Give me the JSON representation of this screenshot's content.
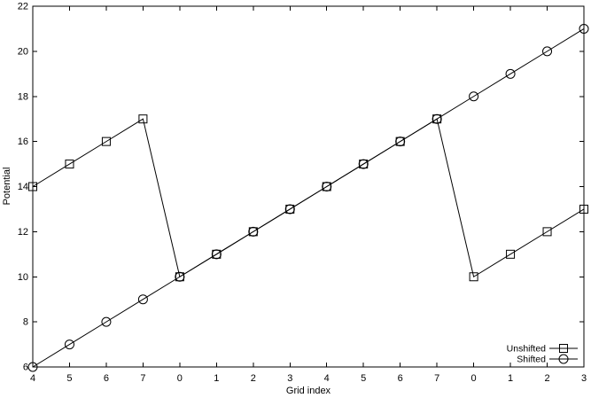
{
  "chart_data": {
    "type": "line",
    "title": "",
    "xlabel": "Grid index",
    "ylabel": "Potential",
    "x_tick_labels": [
      "4",
      "5",
      "6",
      "7",
      "0",
      "1",
      "2",
      "3",
      "4",
      "5",
      "6",
      "7",
      "0",
      "1",
      "2",
      "3"
    ],
    "ylim": [
      6,
      22
    ],
    "y_ticks": [
      6,
      8,
      10,
      12,
      14,
      16,
      18,
      20,
      22
    ],
    "grid": false,
    "legend_position": "bottom-right",
    "series": [
      {
        "name": "Unshifted",
        "marker": "square",
        "values": [
          14,
          15,
          16,
          17,
          10,
          11,
          12,
          13,
          14,
          15,
          16,
          17,
          10,
          11,
          12,
          13
        ]
      },
      {
        "name": "Shifted",
        "marker": "circle",
        "values": [
          6,
          7,
          8,
          9,
          10,
          11,
          12,
          13,
          14,
          15,
          16,
          17,
          18,
          19,
          20,
          21
        ]
      }
    ],
    "colors": {
      "foreground": "#000000",
      "background": "#ffffff"
    }
  }
}
